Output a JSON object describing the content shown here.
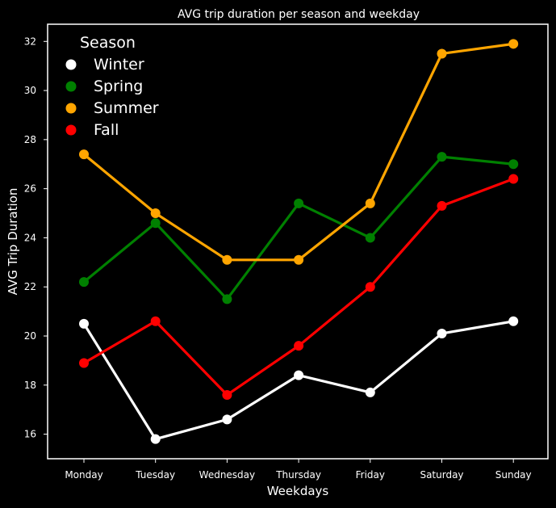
{
  "chart_data": {
    "type": "line",
    "title": "AVG trip duration per season and weekday",
    "xlabel": "Weekdays",
    "ylabel": "AVG Trip Duration",
    "categories": [
      "Monday",
      "Tuesday",
      "Wednesday",
      "Thursday",
      "Friday",
      "Saturday",
      "Sunday"
    ],
    "ylim": [
      15,
      32.7
    ],
    "yticks": [
      "16",
      "18",
      "20",
      "22",
      "24",
      "26",
      "28",
      "30",
      "32"
    ],
    "grid": false,
    "legend": {
      "title": "Season",
      "placement": "top-left"
    },
    "series": [
      {
        "name": "Winter",
        "color": "#ffffff",
        "values": [
          20.5,
          15.8,
          16.6,
          18.4,
          17.7,
          20.1,
          20.6
        ]
      },
      {
        "name": "Spring",
        "color": "#008000",
        "values": [
          22.2,
          24.6,
          21.5,
          25.4,
          24.0,
          27.3,
          27.0
        ]
      },
      {
        "name": "Summer",
        "color": "#ffa500",
        "values": [
          27.4,
          25.0,
          23.1,
          23.1,
          25.4,
          31.5,
          31.9
        ]
      },
      {
        "name": "Fall",
        "color": "#ff0000",
        "values": [
          18.9,
          20.6,
          17.6,
          19.6,
          22.0,
          25.3,
          26.4
        ]
      }
    ]
  },
  "colors": {
    "background": "#000000",
    "foreground": "#ffffff"
  }
}
